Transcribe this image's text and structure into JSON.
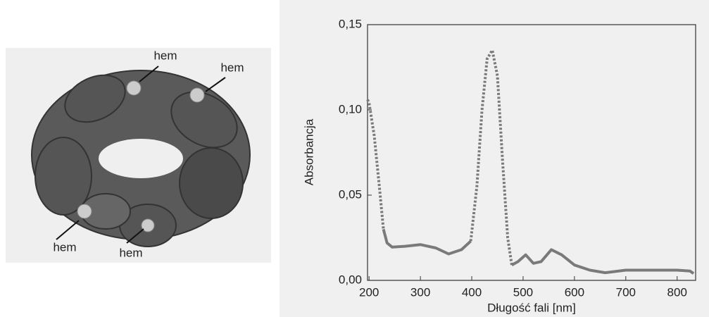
{
  "figure": {
    "labels": [
      "hem",
      "hem",
      "hem",
      "hem"
    ]
  },
  "chart_data": {
    "type": "line",
    "x_label": "Długość fali [nm]",
    "y_label": "Absorbancja",
    "x": [
      197,
      200,
      210,
      220,
      228,
      235,
      245,
      270,
      300,
      330,
      355,
      380,
      398,
      410,
      420,
      430,
      440,
      450,
      460,
      470,
      478,
      490,
      505,
      520,
      535,
      555,
      575,
      600,
      630,
      660,
      700,
      750,
      800,
      825,
      832
    ],
    "series": [
      {
        "color": "#7a7a7a",
        "style": "solid",
        "values": [
          null,
          null,
          null,
          null,
          0.03,
          0.022,
          0.0195,
          0.02,
          0.021,
          0.019,
          0.0155,
          0.018,
          0.023,
          null,
          null,
          null,
          null,
          null,
          null,
          null,
          0.009,
          0.011,
          0.015,
          0.01,
          0.011,
          0.018,
          0.015,
          0.009,
          0.006,
          0.0045,
          0.006,
          0.006,
          0.006,
          0.0055,
          0.004
        ]
      },
      {
        "color": "#7a7a7a",
        "style": "dotted",
        "values": [
          0.106,
          0.104,
          0.085,
          0.055,
          0.03,
          null,
          null,
          null,
          null,
          null,
          null,
          null,
          0.023,
          0.055,
          0.1,
          0.13,
          0.135,
          0.12,
          0.07,
          0.025,
          0.009,
          null,
          null,
          null,
          null,
          null,
          null,
          null,
          null,
          null,
          null,
          null,
          null,
          null,
          null
        ]
      }
    ],
    "xlim": [
      197,
      836
    ],
    "xticks": [
      200,
      300,
      400,
      500,
      600,
      700,
      800
    ],
    "ylim": [
      0,
      0.15
    ],
    "yticks": [
      {
        "value": 0,
        "label": "0,00"
      },
      {
        "value": 0.05,
        "label": "0,05"
      },
      {
        "value": 0.1,
        "label": "0,10"
      },
      {
        "value": 0.15,
        "label": "0,15"
      }
    ]
  }
}
